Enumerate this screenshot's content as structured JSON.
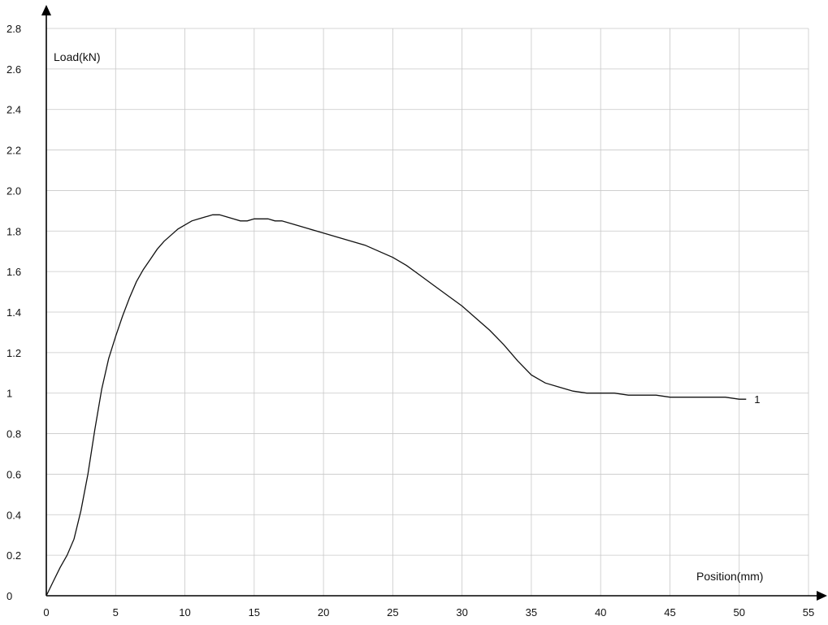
{
  "chart_data": {
    "type": "line",
    "xlabel": "Position(mm)",
    "ylabel": "Load(kN)",
    "xlim": [
      0,
      55
    ],
    "ylim": [
      0,
      2.8
    ],
    "x_ticks": [
      0,
      5,
      10,
      15,
      20,
      25,
      30,
      35,
      40,
      45,
      50,
      55
    ],
    "y_ticks": [
      {
        "v": 0,
        "label": "0"
      },
      {
        "v": 0.2,
        "label": "0.2"
      },
      {
        "v": 0.4,
        "label": "0.4"
      },
      {
        "v": 0.6,
        "label": "0.6"
      },
      {
        "v": 0.8,
        "label": "0.8"
      },
      {
        "v": 1.0,
        "label": "1"
      },
      {
        "v": 1.2,
        "label": "1.2"
      },
      {
        "v": 1.4,
        "label": "1.4"
      },
      {
        "v": 1.6,
        "label": "1.6"
      },
      {
        "v": 1.8,
        "label": "1.8"
      },
      {
        "v": 2.0,
        "label": "2.0"
      },
      {
        "v": 2.2,
        "label": "2.2"
      },
      {
        "v": 2.4,
        "label": "2.4"
      },
      {
        "v": 2.6,
        "label": "2.6"
      },
      {
        "v": 2.8,
        "label": "2.8"
      }
    ],
    "grid": true,
    "series": [
      {
        "label": "1",
        "color": "#111111",
        "x": [
          0,
          0.5,
          1,
          1.5,
          2,
          2.5,
          3,
          3.5,
          4,
          4.5,
          5,
          5.5,
          6,
          6.5,
          7,
          7.5,
          8,
          8.5,
          9,
          9.5,
          10,
          10.5,
          11,
          11.5,
          12,
          12.5,
          13,
          13.5,
          14,
          14.5,
          15,
          15.5,
          16,
          16.5,
          17,
          18,
          19,
          20,
          21,
          22,
          23,
          24,
          25,
          26,
          27,
          28,
          29,
          30,
          31,
          32,
          33,
          34,
          35,
          36,
          37,
          38,
          39,
          40,
          41,
          42,
          43,
          44,
          45,
          46,
          47,
          48,
          49,
          50,
          50.5
        ],
        "y": [
          0,
          0.07,
          0.14,
          0.2,
          0.28,
          0.42,
          0.6,
          0.82,
          1.02,
          1.17,
          1.28,
          1.38,
          1.47,
          1.55,
          1.61,
          1.66,
          1.71,
          1.75,
          1.78,
          1.81,
          1.83,
          1.85,
          1.86,
          1.87,
          1.88,
          1.88,
          1.87,
          1.86,
          1.85,
          1.85,
          1.86,
          1.86,
          1.86,
          1.85,
          1.85,
          1.83,
          1.81,
          1.79,
          1.77,
          1.75,
          1.73,
          1.7,
          1.67,
          1.63,
          1.58,
          1.53,
          1.48,
          1.43,
          1.37,
          1.31,
          1.24,
          1.16,
          1.09,
          1.05,
          1.03,
          1.01,
          1.0,
          1.0,
          1.0,
          0.99,
          0.99,
          0.99,
          0.98,
          0.98,
          0.98,
          0.98,
          0.98,
          0.97,
          0.97
        ]
      }
    ]
  }
}
